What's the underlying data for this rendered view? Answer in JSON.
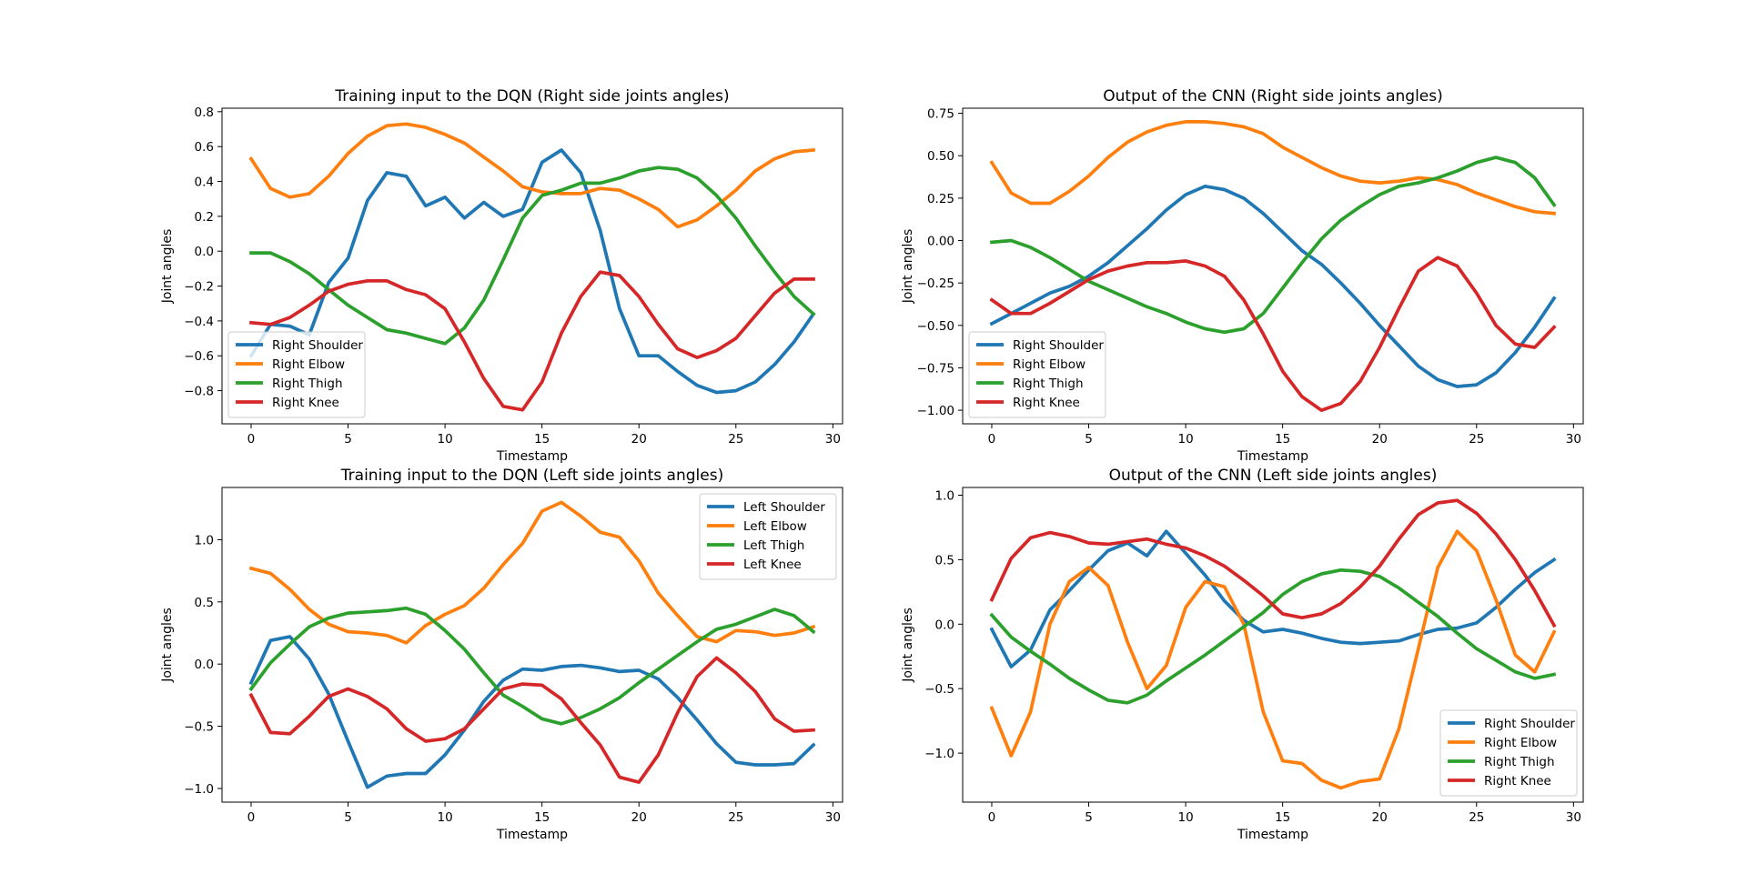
{
  "figure": {
    "colors": [
      "#1f77b4",
      "#ff7f0e",
      "#2ca02c",
      "#d62728"
    ]
  },
  "chart_data": [
    {
      "type": "line",
      "title": "Training input to the DQN (Right side joints angles)",
      "xlabel": "Timestamp",
      "ylabel": "Joint angles",
      "xlim": [
        -1.5,
        30.5
      ],
      "ylim": [
        -0.99,
        0.82
      ],
      "xticks": [
        0,
        5,
        10,
        15,
        20,
        25,
        30
      ],
      "xtick_labels": [
        "0",
        "5",
        "10",
        "15",
        "20",
        "25",
        "30"
      ],
      "yticks": [
        -0.8,
        -0.6,
        -0.4,
        -0.2,
        0.0,
        0.2,
        0.4,
        0.6,
        0.8
      ],
      "ytick_labels": [
        "−0.8",
        "−0.6",
        "−0.4",
        "−0.2",
        "0.0",
        "0.2",
        "0.4",
        "0.6",
        "0.8"
      ],
      "legend_position": "lower-left",
      "grid": false,
      "x": [
        0,
        1,
        2,
        3,
        4,
        5,
        6,
        7,
        8,
        9,
        10,
        11,
        12,
        13,
        14,
        15,
        16,
        17,
        18,
        19,
        20,
        21,
        22,
        23,
        24,
        25,
        26,
        27,
        28,
        29
      ],
      "series": [
        {
          "name": "Right Shoulder",
          "color": "#1f77b4",
          "values": [
            -0.6,
            -0.42,
            -0.43,
            -0.48,
            -0.18,
            -0.04,
            0.29,
            0.45,
            0.43,
            0.26,
            0.31,
            0.19,
            0.28,
            0.2,
            0.24,
            0.51,
            0.58,
            0.45,
            0.12,
            -0.33,
            -0.6,
            -0.6,
            -0.69,
            -0.77,
            -0.81,
            -0.8,
            -0.75,
            -0.65,
            -0.52,
            -0.36
          ]
        },
        {
          "name": "Right Elbow",
          "color": "#ff7f0e",
          "values": [
            0.53,
            0.36,
            0.31,
            0.33,
            0.43,
            0.56,
            0.66,
            0.72,
            0.73,
            0.71,
            0.67,
            0.62,
            0.54,
            0.46,
            0.37,
            0.34,
            0.33,
            0.33,
            0.36,
            0.35,
            0.3,
            0.24,
            0.14,
            0.18,
            0.26,
            0.35,
            0.46,
            0.53,
            0.57,
            0.58
          ]
        },
        {
          "name": "Right Thigh",
          "color": "#2ca02c",
          "values": [
            -0.01,
            -0.01,
            -0.06,
            -0.13,
            -0.22,
            -0.31,
            -0.38,
            -0.45,
            -0.47,
            -0.5,
            -0.53,
            -0.44,
            -0.28,
            -0.05,
            0.19,
            0.32,
            0.35,
            0.39,
            0.39,
            0.42,
            0.46,
            0.48,
            0.47,
            0.42,
            0.32,
            0.19,
            0.03,
            -0.12,
            -0.26,
            -0.36
          ]
        },
        {
          "name": "Right Knee",
          "color": "#d62728",
          "values": [
            -0.41,
            -0.42,
            -0.38,
            -0.31,
            -0.23,
            -0.19,
            -0.17,
            -0.17,
            -0.22,
            -0.25,
            -0.33,
            -0.52,
            -0.73,
            -0.89,
            -0.91,
            -0.75,
            -0.47,
            -0.26,
            -0.12,
            -0.14,
            -0.26,
            -0.42,
            -0.56,
            -0.61,
            -0.57,
            -0.5,
            -0.37,
            -0.24,
            -0.16,
            -0.16
          ]
        }
      ]
    },
    {
      "type": "line",
      "title": "Output of the CNN (Right side joints angles)",
      "xlabel": "Timestamp",
      "ylabel": "Joint angles",
      "xlim": [
        -1.5,
        30.5
      ],
      "ylim": [
        -1.08,
        0.78
      ],
      "xticks": [
        0,
        5,
        10,
        15,
        20,
        25,
        30
      ],
      "xtick_labels": [
        "0",
        "5",
        "10",
        "15",
        "20",
        "25",
        "30"
      ],
      "yticks": [
        -1.0,
        -0.75,
        -0.5,
        -0.25,
        0.0,
        0.25,
        0.5,
        0.75
      ],
      "ytick_labels": [
        "−1.00",
        "−0.75",
        "−0.50",
        "−0.25",
        "0.00",
        "0.25",
        "0.50",
        "0.75"
      ],
      "legend_position": "lower-left",
      "grid": false,
      "x": [
        0,
        1,
        2,
        3,
        4,
        5,
        6,
        7,
        8,
        9,
        10,
        11,
        12,
        13,
        14,
        15,
        16,
        17,
        18,
        19,
        20,
        21,
        22,
        23,
        24,
        25,
        26,
        27,
        28,
        29
      ],
      "series": [
        {
          "name": "Right Shoulder",
          "color": "#1f77b4",
          "values": [
            -0.49,
            -0.43,
            -0.37,
            -0.31,
            -0.27,
            -0.21,
            -0.13,
            -0.03,
            0.07,
            0.18,
            0.27,
            0.32,
            0.3,
            0.25,
            0.16,
            0.05,
            -0.06,
            -0.14,
            -0.25,
            -0.37,
            -0.5,
            -0.62,
            -0.74,
            -0.82,
            -0.86,
            -0.85,
            -0.78,
            -0.66,
            -0.51,
            -0.34
          ]
        },
        {
          "name": "Right Elbow",
          "color": "#ff7f0e",
          "values": [
            0.46,
            0.28,
            0.22,
            0.22,
            0.29,
            0.38,
            0.49,
            0.58,
            0.64,
            0.68,
            0.7,
            0.7,
            0.69,
            0.67,
            0.63,
            0.55,
            0.49,
            0.43,
            0.38,
            0.35,
            0.34,
            0.35,
            0.37,
            0.36,
            0.33,
            0.28,
            0.24,
            0.2,
            0.17,
            0.16
          ]
        },
        {
          "name": "Right Thigh",
          "color": "#2ca02c",
          "values": [
            -0.01,
            0.0,
            -0.04,
            -0.1,
            -0.17,
            -0.24,
            -0.29,
            -0.34,
            -0.39,
            -0.43,
            -0.48,
            -0.52,
            -0.54,
            -0.52,
            -0.43,
            -0.28,
            -0.13,
            0.01,
            0.12,
            0.2,
            0.27,
            0.32,
            0.34,
            0.37,
            0.41,
            0.46,
            0.49,
            0.46,
            0.37,
            0.21
          ]
        },
        {
          "name": "Right Knee",
          "color": "#d62728",
          "values": [
            -0.35,
            -0.43,
            -0.43,
            -0.37,
            -0.3,
            -0.23,
            -0.18,
            -0.15,
            -0.13,
            -0.13,
            -0.12,
            -0.15,
            -0.21,
            -0.35,
            -0.55,
            -0.77,
            -0.92,
            -1.0,
            -0.96,
            -0.83,
            -0.63,
            -0.4,
            -0.18,
            -0.1,
            -0.15,
            -0.31,
            -0.5,
            -0.61,
            -0.63,
            -0.51
          ]
        }
      ]
    },
    {
      "type": "line",
      "title": "Training input to the DQN (Left side joints angles)",
      "xlabel": "Timestamp",
      "ylabel": "Joint angles",
      "xlim": [
        -1.5,
        30.5
      ],
      "ylim": [
        -1.11,
        1.42
      ],
      "xticks": [
        0,
        5,
        10,
        15,
        20,
        25,
        30
      ],
      "xtick_labels": [
        "0",
        "5",
        "10",
        "15",
        "20",
        "25",
        "30"
      ],
      "yticks": [
        -1.0,
        -0.5,
        0.0,
        0.5,
        1.0
      ],
      "ytick_labels": [
        "−1.0",
        "−0.5",
        "0.0",
        "0.5",
        "1.0"
      ],
      "legend_position": "upper-right",
      "grid": false,
      "x": [
        0,
        1,
        2,
        3,
        4,
        5,
        6,
        7,
        8,
        9,
        10,
        11,
        12,
        13,
        14,
        15,
        16,
        17,
        18,
        19,
        20,
        21,
        22,
        23,
        24,
        25,
        26,
        27,
        28,
        29
      ],
      "series": [
        {
          "name": "Left Shoulder",
          "color": "#1f77b4",
          "values": [
            -0.15,
            0.19,
            0.22,
            0.04,
            -0.24,
            -0.62,
            -0.99,
            -0.9,
            -0.88,
            -0.88,
            -0.73,
            -0.53,
            -0.3,
            -0.13,
            -0.04,
            -0.05,
            -0.02,
            -0.01,
            -0.03,
            -0.06,
            -0.05,
            -0.12,
            -0.27,
            -0.45,
            -0.64,
            -0.79,
            -0.81,
            -0.81,
            -0.8,
            -0.65
          ]
        },
        {
          "name": "Left Elbow",
          "color": "#ff7f0e",
          "values": [
            0.77,
            0.73,
            0.6,
            0.44,
            0.32,
            0.26,
            0.25,
            0.23,
            0.17,
            0.31,
            0.4,
            0.47,
            0.61,
            0.8,
            0.97,
            1.23,
            1.3,
            1.19,
            1.06,
            1.02,
            0.83,
            0.57,
            0.39,
            0.22,
            0.18,
            0.27,
            0.26,
            0.23,
            0.25,
            0.3
          ]
        },
        {
          "name": "Left Thigh",
          "color": "#2ca02c",
          "values": [
            -0.2,
            0.01,
            0.16,
            0.3,
            0.37,
            0.41,
            0.42,
            0.43,
            0.45,
            0.4,
            0.27,
            0.12,
            -0.07,
            -0.25,
            -0.34,
            -0.44,
            -0.48,
            -0.43,
            -0.36,
            -0.27,
            -0.15,
            -0.04,
            0.07,
            0.18,
            0.28,
            0.32,
            0.38,
            0.44,
            0.39,
            0.26
          ]
        },
        {
          "name": "Left Knee",
          "color": "#d62728",
          "values": [
            -0.25,
            -0.55,
            -0.56,
            -0.42,
            -0.26,
            -0.2,
            -0.26,
            -0.36,
            -0.52,
            -0.62,
            -0.6,
            -0.52,
            -0.36,
            -0.2,
            -0.16,
            -0.17,
            -0.28,
            -0.47,
            -0.65,
            -0.91,
            -0.95,
            -0.73,
            -0.39,
            -0.1,
            0.05,
            -0.07,
            -0.22,
            -0.44,
            -0.54,
            -0.53
          ]
        }
      ]
    },
    {
      "type": "line",
      "title": "Output of the CNN (Left side joints angles)",
      "xlabel": "Timestamp",
      "ylabel": "Joint angles",
      "xlim": [
        -1.5,
        30.5
      ],
      "ylim": [
        -1.38,
        1.06
      ],
      "xticks": [
        0,
        5,
        10,
        15,
        20,
        25,
        30
      ],
      "xtick_labels": [
        "0",
        "5",
        "10",
        "15",
        "20",
        "25",
        "30"
      ],
      "yticks": [
        -1.0,
        -0.5,
        0.0,
        0.5,
        1.0
      ],
      "ytick_labels": [
        "−1.0",
        "−0.5",
        "0.0",
        "0.5",
        "1.0"
      ],
      "legend_position": "lower-right",
      "grid": false,
      "x": [
        0,
        1,
        2,
        3,
        4,
        5,
        6,
        7,
        8,
        9,
        10,
        11,
        12,
        13,
        14,
        15,
        16,
        17,
        18,
        19,
        20,
        21,
        22,
        23,
        24,
        25,
        26,
        27,
        28,
        29
      ],
      "series": [
        {
          "name": "Right Shoulder",
          "color": "#1f77b4",
          "values": [
            -0.04,
            -0.33,
            -0.2,
            0.11,
            0.26,
            0.42,
            0.57,
            0.63,
            0.53,
            0.72,
            0.55,
            0.38,
            0.18,
            0.03,
            -0.06,
            -0.04,
            -0.07,
            -0.11,
            -0.14,
            -0.15,
            -0.14,
            -0.13,
            -0.08,
            -0.04,
            -0.03,
            0.01,
            0.13,
            0.27,
            0.4,
            0.5
          ]
        },
        {
          "name": "Right Elbow",
          "color": "#ff7f0e",
          "values": [
            -0.65,
            -1.02,
            -0.68,
            0.0,
            0.33,
            0.44,
            0.3,
            -0.14,
            -0.5,
            -0.32,
            0.13,
            0.33,
            0.29,
            0.0,
            -0.68,
            -1.06,
            -1.08,
            -1.21,
            -1.27,
            -1.22,
            -1.2,
            -0.81,
            -0.19,
            0.44,
            0.72,
            0.57,
            0.19,
            -0.24,
            -0.37,
            -0.06
          ]
        },
        {
          "name": "Right Thigh",
          "color": "#2ca02c",
          "values": [
            0.07,
            -0.1,
            -0.21,
            -0.31,
            -0.42,
            -0.51,
            -0.59,
            -0.61,
            -0.55,
            -0.44,
            -0.34,
            -0.24,
            -0.13,
            -0.02,
            0.09,
            0.23,
            0.33,
            0.39,
            0.42,
            0.41,
            0.37,
            0.28,
            0.17,
            0.06,
            -0.07,
            -0.19,
            -0.28,
            -0.37,
            -0.42,
            -0.39
          ]
        },
        {
          "name": "Right Knee",
          "color": "#d62728",
          "values": [
            0.19,
            0.51,
            0.67,
            0.71,
            0.68,
            0.63,
            0.62,
            0.64,
            0.66,
            0.62,
            0.59,
            0.53,
            0.45,
            0.34,
            0.22,
            0.08,
            0.05,
            0.08,
            0.16,
            0.29,
            0.45,
            0.66,
            0.85,
            0.94,
            0.96,
            0.86,
            0.7,
            0.5,
            0.26,
            -0.01
          ]
        }
      ]
    }
  ]
}
